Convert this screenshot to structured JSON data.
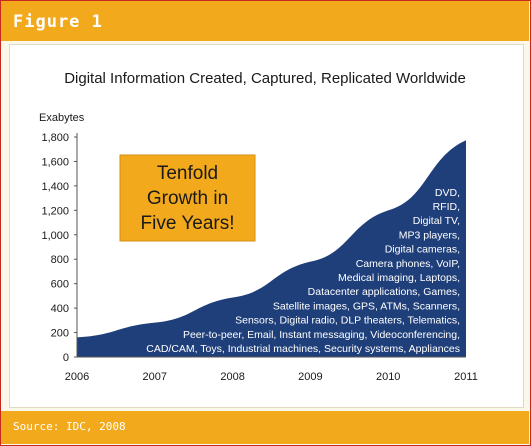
{
  "figure_label": "Figure 1",
  "source": "Source: IDC, 2008",
  "chart_data": {
    "type": "area",
    "title": "Digital Information Created, Captured, Replicated Worldwide",
    "ylabel": "Exabytes",
    "xlabel": "",
    "x": [
      "2006",
      "2007",
      "2008",
      "2009",
      "2010",
      "2011"
    ],
    "y_ticks": [
      "1,800",
      "1,600",
      "1,400",
      "1,200",
      "1,000",
      "800",
      "600",
      "400",
      "200",
      "0"
    ],
    "ylim": [
      0,
      1800
    ],
    "series": [
      {
        "values": [
          161,
          281,
          487,
          780,
          1200,
          1773
        ]
      }
    ],
    "fill_color": "#1f3f7a",
    "callout": {
      "lines": [
        "Tenfold",
        "Growth in",
        "Five Years!"
      ],
      "bg": "#f3a91c"
    },
    "annotations": [
      "DVD,",
      "RFID,",
      "Digital TV,",
      "MP3 players,",
      "Digital cameras,",
      "Camera phones, VoIP,",
      "Medical imaging, Laptops,",
      "Datacenter applications, Games,",
      "Satellite images, GPS, ATMs, Scanners,",
      "Sensors, Digital radio, DLP theaters, Telematics,",
      "Peer-to-peer, Email, Instant messaging, Videoconferencing,",
      "CAD/CAM, Toys, Industrial machines, Security systems, Appliances"
    ],
    "grid": false,
    "legend": "none"
  }
}
